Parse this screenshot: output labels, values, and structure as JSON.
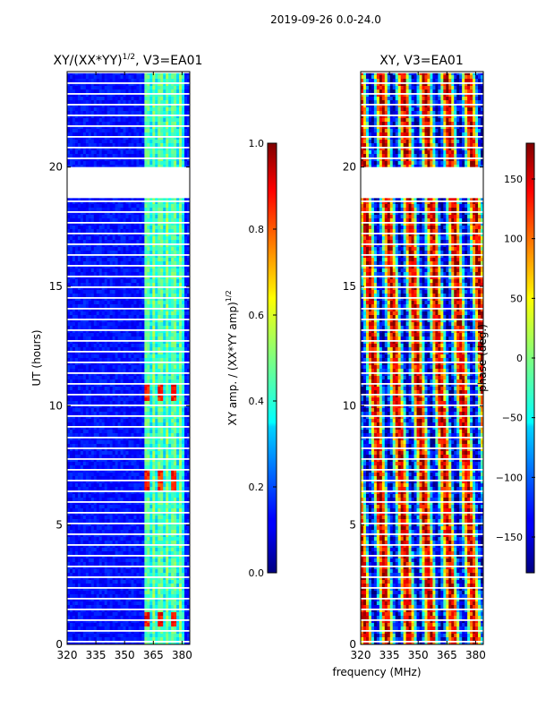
{
  "figure_title": "2019-09-26 0.0-24.0",
  "xlabel_shared": "frequency (MHz)",
  "chart_data": [
    {
      "type": "heatmap",
      "title": "XY/(XX*YY)",
      "title_exp": "1/2",
      "title_suffix": ", V3=EA01",
      "xlabel": "",
      "ylabel": "UT (hours)",
      "xlim": [
        320,
        384
      ],
      "ylim": [
        0,
        24
      ],
      "xticks": [
        320,
        335,
        350,
        365,
        380
      ],
      "yticks": [
        0,
        5,
        10,
        15,
        20
      ],
      "colormap": "jet",
      "colorbar": {
        "label": "XY amp. / (XX*YY amp)",
        "label_exp": "1/2",
        "range": [
          0.0,
          1.0
        ],
        "ticks": [
          "0.0",
          "0.2",
          "0.4",
          "0.6",
          "0.8",
          "1.0"
        ],
        "tick_values": [
          0.0,
          0.2,
          0.4,
          0.6,
          0.8,
          1.0
        ]
      },
      "gap_hours": [
        [
          18.7,
          20.0
        ]
      ],
      "band_mhz": [
        360,
        381
      ],
      "hot_spots_hours": [
        [
          6.4,
          7.4
        ],
        [
          10.2,
          10.9
        ],
        [
          0.8,
          1.4
        ]
      ]
    },
    {
      "type": "heatmap",
      "title": "XY, V3=EA01",
      "xlabel": "",
      "ylabel": "",
      "xlim": [
        320,
        384
      ],
      "ylim": [
        0,
        24
      ],
      "xticks": [
        320,
        335,
        350,
        365,
        380
      ],
      "yticks": [
        0,
        5,
        10,
        15,
        20
      ],
      "colormap": "jet",
      "colorbar": {
        "label": "phase (deg.)",
        "range": [
          -180,
          180
        ],
        "ticks": [
          "−150",
          "−100",
          "−50",
          "0",
          "50",
          "100",
          "150"
        ],
        "tick_values": [
          -150,
          -100,
          -50,
          0,
          50,
          100,
          150
        ]
      },
      "gap_hours": [
        [
          18.7,
          20.0
        ]
      ]
    }
  ]
}
